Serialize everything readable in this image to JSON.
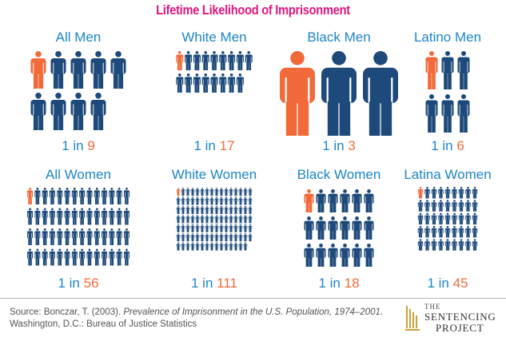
{
  "title": "Lifetime Likelihood of Imprisonment",
  "colors": {
    "title": "#e0157f",
    "panel_title": "#1d86c6",
    "highlight": "#f26a3a",
    "figure": "#1d4a7a",
    "ratio_text": "#1d86c6"
  },
  "chart_data": {
    "type": "pictogram",
    "groups": [
      {
        "label": "All Men",
        "prefix": "1 in",
        "value": 9
      },
      {
        "label": "White Men",
        "prefix": "1 in",
        "value": 17
      },
      {
        "label": "Black Men",
        "prefix": "1 in",
        "value": 3
      },
      {
        "label": "Latino Men",
        "prefix": "1 in",
        "value": 6
      },
      {
        "label": "All Women",
        "prefix": "1 in",
        "value": 56
      },
      {
        "label": "White Women",
        "prefix": "1 in",
        "value": 111
      },
      {
        "label": "Black Women",
        "prefix": "1 in",
        "value": 18
      },
      {
        "label": "Latina Women",
        "prefix": "1 in",
        "value": 45
      }
    ]
  },
  "source": {
    "prefix": "Source: Bonczar, T. (2003). ",
    "italic": "Prevalence of Imprisonment in the U.S. Population, 1974–2001",
    "suffix": ". Washington, D.C.: Bureau of Justice Statistics"
  },
  "logo": {
    "line1": "THE",
    "line2": "SENTENCING",
    "line3": "PROJECT",
    "colors": {
      "mark": "#c9a23a",
      "text": "#333333"
    }
  }
}
